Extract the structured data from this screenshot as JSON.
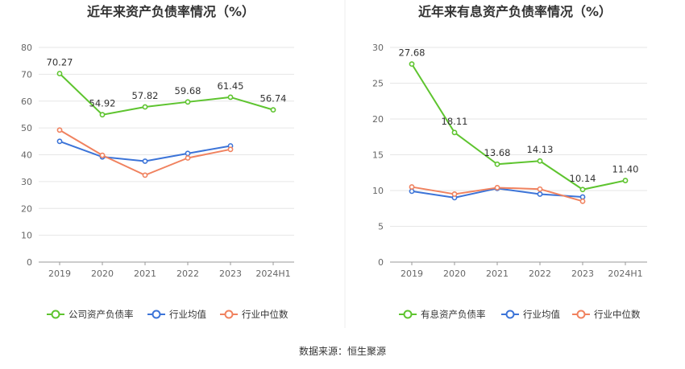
{
  "colors": {
    "company": "#5ec42f",
    "industry_avg": "#3c74d8",
    "industry_median": "#f0825f"
  },
  "source": "数据来源：恒生聚源",
  "chart_data": [
    {
      "type": "line",
      "title": "近年来资产负债率情况（%）",
      "categories": [
        "2019",
        "2020",
        "2021",
        "2022",
        "2023",
        "2024H1"
      ],
      "ylim": [
        0,
        80
      ],
      "yticks": [
        "0",
        "10",
        "20",
        "30",
        "40",
        "50",
        "60",
        "70",
        "80"
      ],
      "grid": true,
      "legend": "bottom",
      "series": [
        {
          "name": "公司资产负债率",
          "values": [
            70.27,
            54.92,
            57.82,
            59.68,
            61.45,
            56.74
          ],
          "labels": [
            "70.27",
            "54.92",
            "57.82",
            "59.68",
            "61.45",
            "56.74"
          ]
        },
        {
          "name": "行业均值",
          "values": [
            45.0,
            39.2,
            37.6,
            40.5,
            43.3,
            null
          ]
        },
        {
          "name": "行业中位数",
          "values": [
            49.2,
            39.8,
            32.4,
            38.8,
            42.0,
            null
          ]
        }
      ]
    },
    {
      "type": "line",
      "title": "近年来有息资产负债率情况（%）",
      "categories": [
        "2019",
        "2020",
        "2021",
        "2022",
        "2023",
        "2024H1"
      ],
      "ylim": [
        0,
        30
      ],
      "yticks": [
        "0",
        "5",
        "10",
        "15",
        "20",
        "25",
        "30"
      ],
      "grid": true,
      "legend": "bottom",
      "series": [
        {
          "name": "有息资产负债率",
          "values": [
            27.68,
            18.11,
            13.68,
            14.13,
            10.14,
            11.4
          ],
          "labels": [
            "27.68",
            "18.11",
            "13.68",
            "14.13",
            "10.14",
            "11.40"
          ]
        },
        {
          "name": "行业均值",
          "values": [
            9.9,
            9.0,
            10.3,
            9.5,
            9.1,
            null
          ]
        },
        {
          "name": "行业中位数",
          "values": [
            10.5,
            9.5,
            10.4,
            10.2,
            8.5,
            null
          ]
        }
      ]
    }
  ]
}
